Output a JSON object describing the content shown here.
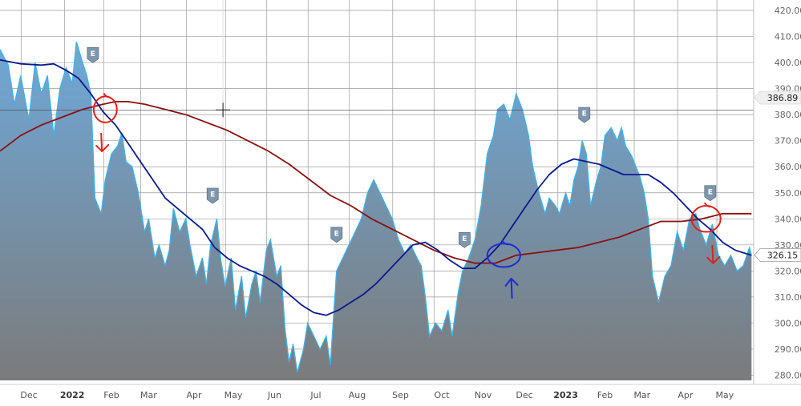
{
  "chart_data": {
    "type": "area",
    "y_axis": {
      "ylim": [
        278,
        424
      ],
      "ticks": [
        "280.00",
        "290.00",
        "300.00",
        "310.00",
        "320.00",
        "330.00",
        "340.00",
        "350.00",
        "360.00",
        "370.00",
        "380.00",
        "390.00",
        "400.00",
        "410.00",
        "420.00"
      ]
    },
    "x_axis": {
      "range": [
        0,
        18.2
      ],
      "ticks": [
        {
          "label": "Dec",
          "pos": 0.7,
          "bold": false
        },
        {
          "label": "2022",
          "pos": 1.75,
          "bold": true
        },
        {
          "label": "Feb",
          "pos": 2.7,
          "bold": false
        },
        {
          "label": "Mar",
          "pos": 3.6,
          "bold": false
        },
        {
          "label": "Apr",
          "pos": 4.7,
          "bold": false
        },
        {
          "label": "May",
          "pos": 5.65,
          "bold": false
        },
        {
          "label": "Jun",
          "pos": 6.65,
          "bold": false
        },
        {
          "label": "Jul",
          "pos": 7.65,
          "bold": false
        },
        {
          "label": "Aug",
          "pos": 8.65,
          "bold": false
        },
        {
          "label": "Sep",
          "pos": 9.7,
          "bold": false
        },
        {
          "label": "Oct",
          "pos": 10.7,
          "bold": false
        },
        {
          "label": "Nov",
          "pos": 11.7,
          "bold": false
        },
        {
          "label": "Dec",
          "pos": 12.7,
          "bold": false
        },
        {
          "label": "2023",
          "pos": 13.7,
          "bold": true
        },
        {
          "label": "Feb",
          "pos": 14.65,
          "bold": false
        },
        {
          "label": "Mar",
          "pos": 15.55,
          "bold": false
        },
        {
          "label": "Apr",
          "pos": 16.6,
          "bold": false
        },
        {
          "label": "May",
          "pos": 17.55,
          "bold": false
        }
      ]
    },
    "price_series": [
      [
        0,
        405
      ],
      [
        0.2,
        399
      ],
      [
        0.35,
        384
      ],
      [
        0.5,
        395
      ],
      [
        0.7,
        378
      ],
      [
        0.85,
        400
      ],
      [
        1.0,
        388
      ],
      [
        1.15,
        395
      ],
      [
        1.3,
        372
      ],
      [
        1.45,
        390
      ],
      [
        1.6,
        398
      ],
      [
        1.75,
        392
      ],
      [
        1.85,
        408
      ],
      [
        2.0,
        400
      ],
      [
        2.1,
        395
      ],
      [
        2.2,
        388
      ],
      [
        2.3,
        348
      ],
      [
        2.45,
        342
      ],
      [
        2.55,
        355
      ],
      [
        2.7,
        365
      ],
      [
        2.85,
        368
      ],
      [
        2.95,
        373
      ],
      [
        3.05,
        362
      ],
      [
        3.2,
        360
      ],
      [
        3.35,
        350
      ],
      [
        3.5,
        335
      ],
      [
        3.6,
        340
      ],
      [
        3.75,
        325
      ],
      [
        3.85,
        330
      ],
      [
        4.0,
        322
      ],
      [
        4.1,
        328
      ],
      [
        4.2,
        344
      ],
      [
        4.35,
        335
      ],
      [
        4.5,
        340
      ],
      [
        4.6,
        330
      ],
      [
        4.75,
        318
      ],
      [
        4.9,
        325
      ],
      [
        5.0,
        315
      ],
      [
        5.1,
        330
      ],
      [
        5.25,
        340
      ],
      [
        5.35,
        324
      ],
      [
        5.45,
        314
      ],
      [
        5.6,
        325
      ],
      [
        5.7,
        305
      ],
      [
        5.85,
        318
      ],
      [
        5.95,
        302
      ],
      [
        6.1,
        315
      ],
      [
        6.2,
        320
      ],
      [
        6.3,
        308
      ],
      [
        6.45,
        328
      ],
      [
        6.55,
        332
      ],
      [
        6.7,
        318
      ],
      [
        6.8,
        322
      ],
      [
        6.9,
        298
      ],
      [
        7.0,
        285
      ],
      [
        7.1,
        292
      ],
      [
        7.2,
        281
      ],
      [
        7.35,
        290
      ],
      [
        7.45,
        300
      ],
      [
        7.6,
        295
      ],
      [
        7.75,
        290
      ],
      [
        7.9,
        295
      ],
      [
        8.0,
        284
      ],
      [
        8.15,
        320
      ],
      [
        8.3,
        325
      ],
      [
        8.45,
        330
      ],
      [
        8.6,
        335
      ],
      [
        8.75,
        340
      ],
      [
        8.9,
        350
      ],
      [
        9.05,
        355
      ],
      [
        9.2,
        350
      ],
      [
        9.35,
        345
      ],
      [
        9.5,
        340
      ],
      [
        9.65,
        332
      ],
      [
        9.8,
        327
      ],
      [
        9.95,
        330
      ],
      [
        10.1,
        325
      ],
      [
        10.2,
        322
      ],
      [
        10.3,
        310
      ],
      [
        10.4,
        295
      ],
      [
        10.55,
        300
      ],
      [
        10.7,
        297
      ],
      [
        10.85,
        305
      ],
      [
        10.95,
        295
      ],
      [
        11.1,
        312
      ],
      [
        11.2,
        320
      ],
      [
        11.35,
        325
      ],
      [
        11.5,
        332
      ],
      [
        11.65,
        345
      ],
      [
        11.8,
        365
      ],
      [
        11.95,
        372
      ],
      [
        12.05,
        382
      ],
      [
        12.2,
        384
      ],
      [
        12.35,
        378
      ],
      [
        12.5,
        388
      ],
      [
        12.65,
        382
      ],
      [
        12.8,
        372
      ],
      [
        12.9,
        360
      ],
      [
        13.05,
        350
      ],
      [
        13.2,
        342
      ],
      [
        13.3,
        348
      ],
      [
        13.45,
        345
      ],
      [
        13.55,
        342
      ],
      [
        13.7,
        350
      ],
      [
        13.8,
        345
      ],
      [
        13.9,
        355
      ],
      [
        14.0,
        360
      ],
      [
        14.1,
        370
      ],
      [
        14.2,
        365
      ],
      [
        14.3,
        345
      ],
      [
        14.45,
        355
      ],
      [
        14.55,
        360
      ],
      [
        14.65,
        372
      ],
      [
        14.8,
        375
      ],
      [
        14.95,
        370
      ],
      [
        15.05,
        375
      ],
      [
        15.15,
        368
      ],
      [
        15.3,
        364
      ],
      [
        15.4,
        360
      ],
      [
        15.5,
        356
      ],
      [
        15.6,
        350
      ],
      [
        15.7,
        340
      ],
      [
        15.8,
        318
      ],
      [
        15.95,
        308
      ],
      [
        16.1,
        318
      ],
      [
        16.25,
        322
      ],
      [
        16.4,
        335
      ],
      [
        16.55,
        328
      ],
      [
        16.7,
        340
      ],
      [
        16.85,
        342
      ],
      [
        16.95,
        336
      ],
      [
        17.1,
        330
      ],
      [
        17.25,
        338
      ],
      [
        17.4,
        326
      ],
      [
        17.55,
        322
      ],
      [
        17.7,
        326
      ],
      [
        17.85,
        320
      ],
      [
        18.0,
        322
      ],
      [
        18.15,
        329
      ],
      [
        18.2,
        326
      ]
    ],
    "ma_50": [
      [
        0,
        401
      ],
      [
        0.5,
        399.5
      ],
      [
        1.0,
        399
      ],
      [
        1.3,
        399.5
      ],
      [
        1.6,
        397
      ],
      [
        1.9,
        394
      ],
      [
        2.2,
        388
      ],
      [
        2.5,
        381
      ],
      [
        2.8,
        376
      ],
      [
        3.1,
        369
      ],
      [
        3.4,
        362
      ],
      [
        3.7,
        355
      ],
      [
        4.0,
        348
      ],
      [
        4.3,
        344
      ],
      [
        4.6,
        340
      ],
      [
        4.9,
        336
      ],
      [
        5.2,
        329
      ],
      [
        5.5,
        325
      ],
      [
        5.8,
        322
      ],
      [
        6.1,
        320
      ],
      [
        6.4,
        318
      ],
      [
        6.7,
        315
      ],
      [
        7.0,
        311
      ],
      [
        7.3,
        307
      ],
      [
        7.6,
        304
      ],
      [
        7.9,
        303
      ],
      [
        8.2,
        305
      ],
      [
        8.5,
        308
      ],
      [
        8.8,
        311
      ],
      [
        9.1,
        315
      ],
      [
        9.4,
        320
      ],
      [
        9.7,
        325
      ],
      [
        10.0,
        330
      ],
      [
        10.3,
        331
      ],
      [
        10.6,
        328
      ],
      [
        10.9,
        324
      ],
      [
        11.2,
        321
      ],
      [
        11.5,
        321
      ],
      [
        11.8,
        325
      ],
      [
        12.1,
        330
      ],
      [
        12.4,
        337
      ],
      [
        12.7,
        344
      ],
      [
        13.0,
        351
      ],
      [
        13.3,
        357
      ],
      [
        13.6,
        361
      ],
      [
        13.9,
        363
      ],
      [
        14.2,
        362
      ],
      [
        14.5,
        361
      ],
      [
        14.8,
        359
      ],
      [
        15.1,
        357
      ],
      [
        15.4,
        357
      ],
      [
        15.7,
        357
      ],
      [
        16.0,
        354
      ],
      [
        16.3,
        350
      ],
      [
        16.6,
        345
      ],
      [
        16.9,
        340
      ],
      [
        17.2,
        336
      ],
      [
        17.5,
        331
      ],
      [
        17.8,
        328
      ],
      [
        18.0,
        327
      ],
      [
        18.2,
        326
      ]
    ],
    "ma_200": [
      [
        0,
        366
      ],
      [
        0.5,
        372
      ],
      [
        1.0,
        376
      ],
      [
        1.5,
        379
      ],
      [
        2.0,
        382
      ],
      [
        2.5,
        384
      ],
      [
        2.8,
        385
      ],
      [
        3.1,
        385
      ],
      [
        3.5,
        384
      ],
      [
        4.0,
        382
      ],
      [
        4.5,
        380
      ],
      [
        5.0,
        377
      ],
      [
        5.5,
        374
      ],
      [
        6.0,
        370
      ],
      [
        6.5,
        366
      ],
      [
        7.0,
        361
      ],
      [
        7.5,
        355
      ],
      [
        8.0,
        349
      ],
      [
        8.5,
        345
      ],
      [
        9.0,
        340
      ],
      [
        9.5,
        336
      ],
      [
        10.0,
        332
      ],
      [
        10.5,
        328
      ],
      [
        11.0,
        325
      ],
      [
        11.5,
        323
      ],
      [
        12.0,
        323
      ],
      [
        12.5,
        326
      ],
      [
        13.0,
        327
      ],
      [
        13.5,
        328
      ],
      [
        14.0,
        329
      ],
      [
        14.5,
        331
      ],
      [
        15.0,
        333
      ],
      [
        15.5,
        336
      ],
      [
        16.0,
        339
      ],
      [
        16.5,
        339
      ],
      [
        17.0,
        340
      ],
      [
        17.5,
        342
      ],
      [
        18.0,
        342
      ],
      [
        18.2,
        342
      ]
    ],
    "earnings_markers": [
      {
        "label": "E",
        "pos": 2.25,
        "y": 403
      },
      {
        "label": "E",
        "pos": 5.15,
        "y": 349
      },
      {
        "label": "E",
        "pos": 8.15,
        "y": 334
      },
      {
        "label": "E",
        "pos": 11.25,
        "y": 332
      },
      {
        "label": "E",
        "pos": 14.15,
        "y": 380
      },
      {
        "label": "E",
        "pos": 17.2,
        "y": 350
      }
    ],
    "price_tags": [
      {
        "label": "386.89",
        "y": 386.5,
        "style": "faded"
      },
      {
        "label": "326.15",
        "y": 326.15,
        "style": "current"
      }
    ],
    "reference_line": 381.8,
    "crosshair": {
      "pos": 5.4,
      "y": 381.8
    },
    "annotations": [
      {
        "kind": "circle",
        "color": "#e0201c",
        "pos": 2.55,
        "y": 382,
        "rx": 0.28,
        "ry": 5
      },
      {
        "kind": "arrow-down",
        "color": "#e0201c",
        "pos": 2.45,
        "y": 369
      },
      {
        "kind": "circle",
        "color": "#1d2bd6",
        "pos": 12.2,
        "y": 326,
        "rx": 0.4,
        "ry": 4.5
      },
      {
        "kind": "arrow-up",
        "color": "#1d2bd6",
        "pos": 12.4,
        "y": 314
      },
      {
        "kind": "circle",
        "color": "#e0201c",
        "pos": 17.1,
        "y": 340,
        "rx": 0.35,
        "ry": 5
      },
      {
        "kind": "arrow-down",
        "color": "#e0201c",
        "pos": 17.25,
        "y": 326
      }
    ],
    "colors": {
      "area_top": "#6fa8d8",
      "area_bottom": "#7b7b7b",
      "price_line": "#3fb2ea",
      "ma_50": "#0a1a8a",
      "ma_200": "#8a1010",
      "grid": "#9a9a9a",
      "marker": "#7f97ad"
    }
  }
}
